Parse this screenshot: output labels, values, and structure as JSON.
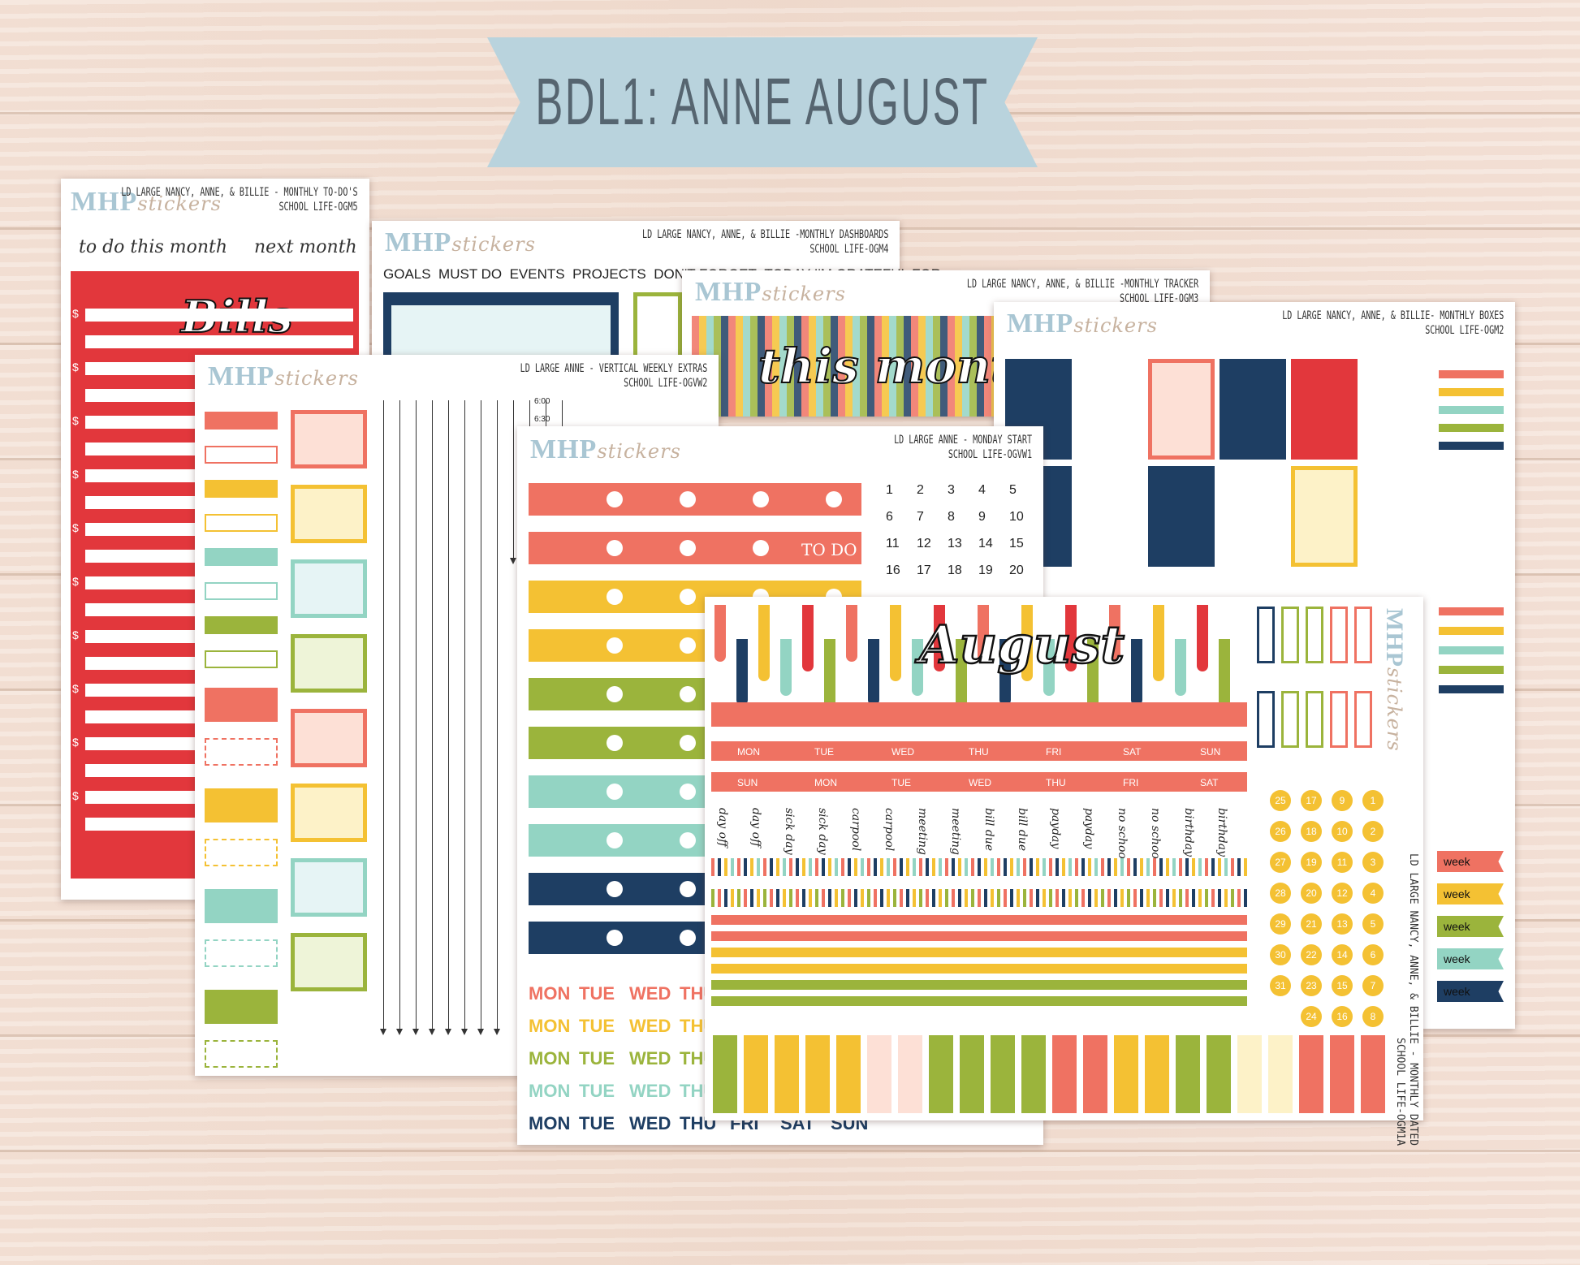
{
  "banner": {
    "title": "BDL1: ANNE AUGUST"
  },
  "brand": {
    "name": "MHP",
    "suffix": "stickers"
  },
  "sheets": {
    "todo": {
      "title": "LD LARGE NANCY, ANNE, & BILLIE - MONTHLY TO-DO'S",
      "code": "SCHOOL LIFE-OGM5",
      "labels": [
        "to do this month",
        "next month",
        "Bills"
      ],
      "dollar": "$"
    },
    "dash": {
      "title": "LD LARGE NANCY, ANNE, & BILLIE -MONTHLY DASHBOARDS",
      "code": "SCHOOL LIFE-OGM4",
      "labels": [
        "GOALS",
        "MUST DO",
        "EVENTS",
        "PROJECTS",
        "DON'T FORGET",
        "TODAY I'M GRATEFUL FOR"
      ]
    },
    "tracker": {
      "title": "LD LARGE NANCY, ANNE, & BILLIE -MONTHLY TRACKER",
      "code": "SCHOOL LIFE-OGM3",
      "label": "this month"
    },
    "boxes": {
      "title": "LD LARGE NANCY, ANNE, & BILLIE- MONTHLY BOXES",
      "code": "SCHOOL LIFE-OGM2"
    },
    "weekly": {
      "title": "LD LARGE ANNE - VERTICAL WEEKLY EXTRAS",
      "code": "SCHOOL LIFE-OGVW2",
      "times": [
        "6:00",
        "6:30"
      ]
    },
    "monday": {
      "title": "LD LARGE ANNE - MONDAY START",
      "code": "SCHOOL LIFE-OGVW1",
      "todo": "TO DO",
      "numbers": [
        "1",
        "2",
        "3",
        "4",
        "5",
        "6",
        "7",
        "8",
        "9",
        "10",
        "11",
        "12",
        "13",
        "14",
        "15",
        "16",
        "17",
        "18",
        "19",
        "20"
      ],
      "days": [
        "MON",
        "TUE",
        "WED",
        "THU",
        "FRI",
        "SAT",
        "SUN"
      ]
    },
    "dated": {
      "title": "LD LARGE NANCY, ANNE, & BILLIE - MONTHLY DATED",
      "code": "SCHOOL LIFE-OGM1A",
      "month": "August",
      "row1": [
        "MON",
        "TUE",
        "WED",
        "THU",
        "FRI",
        "SAT",
        "SUN"
      ],
      "row2": [
        "SUN",
        "MON",
        "TUE",
        "WED",
        "THU",
        "FRI",
        "SAT"
      ],
      "script_words": [
        "day off",
        "day off",
        "sick day",
        "sick day",
        "carpool",
        "carpool",
        "meeting",
        "meeting",
        "bill due",
        "bill due",
        "payday",
        "payday",
        "no school",
        "no school",
        "birthday",
        "birthday"
      ],
      "circles": [
        "1",
        "2",
        "3",
        "4",
        "5",
        "6",
        "7",
        "8",
        "9",
        "10",
        "11",
        "12",
        "13",
        "14",
        "15",
        "16",
        "17",
        "18",
        "19",
        "20",
        "21",
        "22",
        "23",
        "24",
        "25",
        "26",
        "27",
        "28",
        "29",
        "30",
        "31"
      ],
      "week_word": "week"
    }
  },
  "colors": {
    "coral": "#ef7262",
    "red": "#e2373c",
    "yellow": "#f4c133",
    "mint": "#93d4c3",
    "green": "#9bb43c",
    "navy": "#1e3e63",
    "cream": "#fdf2c8",
    "pink": "#fde0d6",
    "lightblue": "#e6f4f5"
  }
}
